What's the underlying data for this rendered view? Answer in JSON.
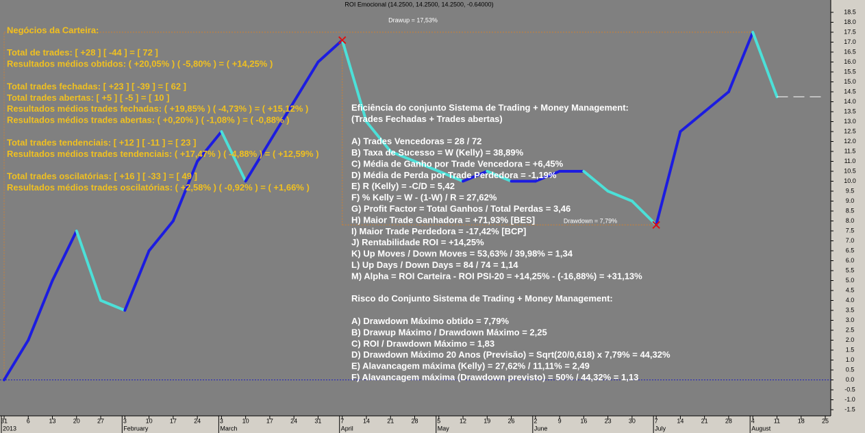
{
  "chart_data": {
    "type": "line",
    "title": "ROI Emocional (14.2500, 14.2500, 14.2500, -0.64000)",
    "drawup_label": "Drawup = 17,53%",
    "drawdown_label": "Drawdown = 7,79%",
    "categories": [
      "31",
      "6",
      "13",
      "20",
      "27",
      "3",
      "10",
      "17",
      "24",
      "3",
      "10",
      "17",
      "24",
      "31",
      "7",
      "14",
      "21",
      "28",
      "5",
      "12",
      "19",
      "26",
      "2",
      "9",
      "16",
      "23",
      "30",
      "7",
      "14",
      "21",
      "28",
      "4",
      "11",
      "18",
      "25"
    ],
    "months": [
      "2013",
      null,
      null,
      null,
      null,
      "February",
      null,
      null,
      null,
      "March",
      null,
      null,
      null,
      null,
      "April",
      null,
      null,
      null,
      "May",
      null,
      null,
      null,
      "June",
      null,
      null,
      null,
      null,
      "July",
      null,
      null,
      null,
      "August",
      null,
      null,
      null
    ],
    "values": [
      0.0,
      2.0,
      5.0,
      7.5,
      4.0,
      3.5,
      6.5,
      8.0,
      11.0,
      12.5,
      10.0,
      12.0,
      14.0,
      16.0,
      17.1,
      13.0,
      11.5,
      11.0,
      10.5,
      10.0,
      10.5,
      10.0,
      10.0,
      10.5,
      10.5,
      9.5,
      9.0,
      7.8,
      12.5,
      13.5,
      14.5,
      17.5,
      14.25,
      null,
      null
    ],
    "up_color": "#1c1ce0",
    "down_color": "#4ce0d8",
    "ylim": [
      -1.5,
      18.5
    ],
    "yticks": [
      18.5,
      {
        "value": 18,
        "label": "18.0"
      },
      17.5,
      {
        "value": 17,
        "label": "17.0"
      },
      16.5,
      {
        "value": 16,
        "label": "16.0"
      },
      15.5,
      {
        "value": 15,
        "label": "15.0"
      },
      14.5,
      {
        "value": 14,
        "label": "14.0"
      },
      13.5,
      {
        "value": 13,
        "label": "13.0"
      },
      12.5,
      {
        "value": 12,
        "label": "12.0"
      },
      11.5,
      {
        "value": 11,
        "label": "11.0"
      },
      10.5,
      {
        "value": 10,
        "label": "10.0"
      },
      9.5,
      {
        "value": 9,
        "label": "9.0"
      },
      8.5,
      {
        "value": 8,
        "label": "8.0"
      },
      7.5,
      {
        "value": 7,
        "label": "7.0"
      },
      6.5,
      {
        "value": 6,
        "label": "6.0"
      },
      5.5,
      {
        "value": 5,
        "label": "5.0"
      },
      4.5,
      {
        "value": 4,
        "label": "4.0"
      },
      3.5,
      {
        "value": 3,
        "label": "3.0"
      },
      2.5,
      {
        "value": 2,
        "label": "2.0"
      },
      1.5,
      {
        "value": 1,
        "label": "1.0"
      },
      0.5,
      {
        "value": 0,
        "label": "0.0"
      },
      -0.5,
      {
        "value": -1,
        "label": "-1.0"
      },
      -1.5
    ],
    "left_notes": [
      [
        "Negócios da Carteira:"
      ],
      [
        "Total de trades: [ +28 ] [ -44 ] = [ 72 ]",
        "Resultados médios obtidos: ( +20,05% ) ( -5,80% ) = ( +14,25% )"
      ],
      [
        "Total trades fechadas: [ +23 ] [ -39 ] = [ 62 ]",
        "Total trades abertas: [ +5 ] [ -5 ] = [ 10 ]",
        "Resultados médios trades fechadas: ( +19,85% ) ( -4,73% ) = ( +15,12% )",
        "Resultados médios trades abertas: ( +0,20% ) ( -1,08% ) = ( -0,88% )"
      ],
      [
        "Total trades tendenciais: [ +12 ] [ -11 ] = [ 23 ]",
        "Resultados médios trades tendenciais: ( +17,47% ) ( -4,88% ) = ( +12,59% )"
      ],
      [
        "Total trades oscilatórias: [ +16 ] [ -33 ] = [ 49 ]",
        "Resultados médios trades oscilatórias: ( +2,58% ) ( -0,92% ) = ( +1,66% )"
      ]
    ],
    "right_notes": [
      [
        "Eficiência do conjunto Sistema de Trading + Money Management:",
        "(Trades Fechadas + Trades abertas)"
      ],
      [
        "A) Trades Vencedoras = 28 / 72",
        "B) Taxa de Sucesso = W (Kelly) = 38,89%",
        "C) Média de Ganho por Trade Vencedora = +6,45%",
        "D) Média de Perda por Trade Perdedora = -1,19%",
        "E) R (Kelly) = -C/D = 5,42",
        "F) % Kelly = W - (1-W) / R = 27,62%",
        "G) Profit Factor = Total Ganhos / Total Perdas = 3,46",
        "H) Maior Trade Ganhadora = +71,93%   [BES]",
        "I) Maior Trade Perdedora = -17,42%   [BCP]",
        "J) Rentabilidade ROI = +14,25%",
        "K) Up Moves / Down Moves = 53,63% / 39,98% = 1,34",
        "L) Up Days / Down Days = 84 / 74 = 1,14",
        "M) Alpha = ROI Carteira - ROI PSI-20 = +14,25% - (-16,88%) = +31,13%"
      ],
      [
        "Risco do Conjunto Sistema de Trading + Money Management:"
      ],
      [
        "A) Drawdown Máximo obtido = 7,79%",
        "B) Drawup Máximo / Drawdown Máximo = 2,25",
        "C) ROI / Drawdown Máximo = 1,83",
        "D) Drawdown Máximo 20 Anos (Previsão) = Sqrt(20/0,618) x 7,79% = 44,32%",
        "E) Alavancagem máxima (Kelly) = 27,62% / 11,11% = 2,49",
        "F) Alavancagem máxima (Drawdown previsto) = 50% / 44,32% = 1,13"
      ]
    ]
  }
}
